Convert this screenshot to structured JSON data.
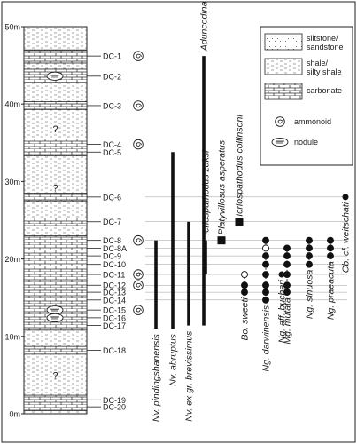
{
  "scale": {
    "unit_labels": [
      "50m",
      "40m",
      "30m",
      "20m",
      "10m",
      "0m"
    ],
    "values": [
      50,
      40,
      30,
      20,
      10,
      0
    ]
  },
  "samples": [
    {
      "label": "DC-1",
      "m": 46.2,
      "ammonoid": true,
      "nodule": false
    },
    {
      "label": "DC-2",
      "m": 43.6,
      "ammonoid": false,
      "nodule": true
    },
    {
      "label": "DC-3",
      "m": 39.8,
      "ammonoid": true,
      "nodule": false
    },
    {
      "label": "DC-4",
      "m": 34.8,
      "ammonoid": true,
      "nodule": false
    },
    {
      "label": "DC-5",
      "m": 33.8,
      "ammonoid": false,
      "nodule": false
    },
    {
      "label": "DC-6",
      "m": 28.0,
      "ammonoid": false,
      "nodule": false
    },
    {
      "label": "DC-7",
      "m": 24.8,
      "ammonoid": false,
      "nodule": false
    },
    {
      "label": "DC-8",
      "m": 22.4,
      "ammonoid": true,
      "nodule": false
    },
    {
      "label": "DC-8A",
      "m": 21.4,
      "ammonoid": false,
      "nodule": false
    },
    {
      "label": "DC-9",
      "m": 20.4,
      "ammonoid": false,
      "nodule": false
    },
    {
      "label": "DC-10",
      "m": 19.3,
      "ammonoid": false,
      "nodule": false
    },
    {
      "label": "DC-11",
      "m": 18.0,
      "ammonoid": true,
      "nodule": false
    },
    {
      "label": "DC-12",
      "m": 16.6,
      "ammonoid": true,
      "nodule": false
    },
    {
      "label": "DC-13",
      "m": 15.7,
      "ammonoid": false,
      "nodule": false
    },
    {
      "label": "DC-14",
      "m": 14.7,
      "ammonoid": false,
      "nodule": false
    },
    {
      "label": "DC-15",
      "m": 13.4,
      "ammonoid": true,
      "nodule": true
    },
    {
      "label": "DC-16",
      "m": 12.4,
      "ammonoid": false,
      "nodule": true
    },
    {
      "label": "DC-17",
      "m": 11.4,
      "ammonoid": false,
      "nodule": false
    },
    {
      "label": "DC-18",
      "m": 8.2,
      "ammonoid": false,
      "nodule": false
    },
    {
      "label": "DC-19",
      "m": 1.8,
      "ammonoid": false,
      "nodule": false
    },
    {
      "label": "DC-20",
      "m": 0.9,
      "ammonoid": false,
      "nodule": false
    }
  ],
  "unknown_marks": [
    {
      "text": "?",
      "m": 36.8
    },
    {
      "text": "?",
      "m": 29.2
    },
    {
      "text": "?",
      "m": 5.0
    }
  ],
  "lithology": [
    {
      "type": "carbonate",
      "from": 45.3,
      "to": 47.0
    },
    {
      "type": "carbonate",
      "from": 42.8,
      "to": 44.5
    },
    {
      "type": "carbonate",
      "from": 39.3,
      "to": 40.3
    },
    {
      "type": "carbonate",
      "from": 33.3,
      "to": 35.5
    },
    {
      "type": "carbonate",
      "from": 27.5,
      "to": 28.5
    },
    {
      "type": "carbonate",
      "from": 24.3,
      "to": 25.3
    },
    {
      "type": "carbonate",
      "from": 10.8,
      "to": 23.0
    },
    {
      "type": "carbonate",
      "from": 7.7,
      "to": 8.7
    },
    {
      "type": "carbonate",
      "from": 0.4,
      "to": 2.4
    }
  ],
  "legend": {
    "items": [
      {
        "key": "siltstone",
        "lines": [
          "siltstone/",
          "sandstone"
        ]
      },
      {
        "key": "shale",
        "lines": [
          "shale/",
          "silty shale"
        ]
      },
      {
        "key": "carbonate",
        "lines": [
          "carbonate"
        ]
      },
      {
        "key": "ammonoid",
        "lines": [
          "ammonoid"
        ]
      },
      {
        "key": "nodule",
        "lines": [
          "nodule"
        ]
      }
    ]
  },
  "ranges": [
    {
      "name": "Nv. pindingshanensis",
      "from": 11.0,
      "to": 22.4,
      "type": "bar"
    },
    {
      "name": "Nv. abruptus",
      "from": 11.0,
      "to": 33.8,
      "type": "bar"
    },
    {
      "name": "Nv. ex gr. brevissimus",
      "from": 11.4,
      "to": 24.8,
      "type": "bar"
    },
    {
      "name": "Icriospathodus zaksi",
      "from": 18.0,
      "to": 22.4,
      "type": "bar"
    },
    {
      "name": "Aduncodina sp.",
      "from": 11.4,
      "to": 46.2,
      "type": "bar"
    },
    {
      "name": "Platyvillosus asperatus",
      "from": 22.4,
      "to": 22.4,
      "type": "square"
    },
    {
      "name": "Icriospathodus collinsoni",
      "from": 24.8,
      "to": 24.8,
      "type": "square"
    },
    {
      "name": "Bo. sweeti",
      "from": 15.7,
      "to": 18.0,
      "type": "dotted"
    },
    {
      "name": "Ng. darwinensis",
      "from": 14.7,
      "to": 22.4,
      "type": "dotted"
    },
    {
      "name": "Ng. aff. bucheri",
      "from": 18.0,
      "to": 18.0,
      "type": "dot"
    },
    {
      "name": "Mg. mutata",
      "from": 15.7,
      "to": 21.4,
      "type": "dotted"
    },
    {
      "name": "Ng. sinuosa",
      "from": 19.3,
      "to": 22.4,
      "type": "dotted"
    },
    {
      "name": "Ng. praeacuta",
      "from": 20.4,
      "to": 22.4,
      "type": "dotted"
    },
    {
      "name": "Cb. cf. weitschati",
      "from": 28.0,
      "to": 28.0,
      "type": "dot"
    }
  ]
}
